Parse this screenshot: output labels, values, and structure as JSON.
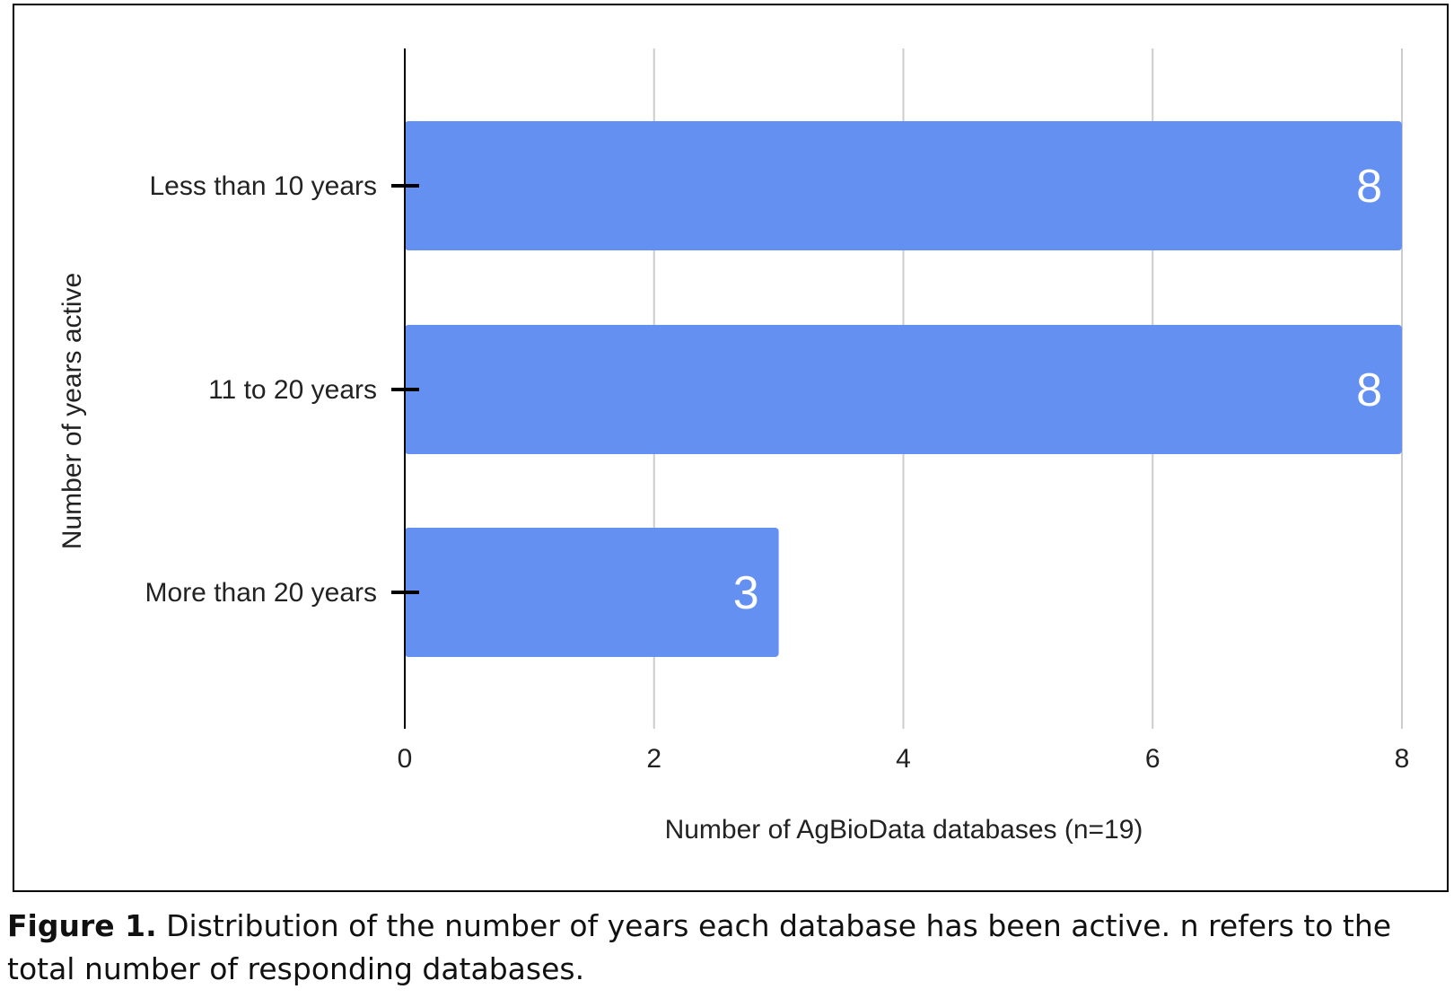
{
  "chart_data": {
    "type": "bar",
    "orientation": "horizontal",
    "categories": [
      "Less than 10 years",
      "11 to 20 years",
      "More than 20 years"
    ],
    "values": [
      8,
      8,
      3
    ],
    "data_labels": [
      "8",
      "8",
      "3"
    ],
    "xlabel": "Number of AgBioData databases (n=19)",
    "ylabel": "Number of years active",
    "xlim": [
      0,
      8
    ],
    "xticks": [
      "0",
      "2",
      "4",
      "6",
      "8"
    ],
    "grid": "vertical",
    "bar_color": "#6490F2",
    "grid_color": "#cccccc",
    "legend": "none"
  },
  "caption": {
    "label": "Figure 1.",
    "text": " Distribution of the number of years each database has been active. n refers to the total number of responding databases."
  }
}
